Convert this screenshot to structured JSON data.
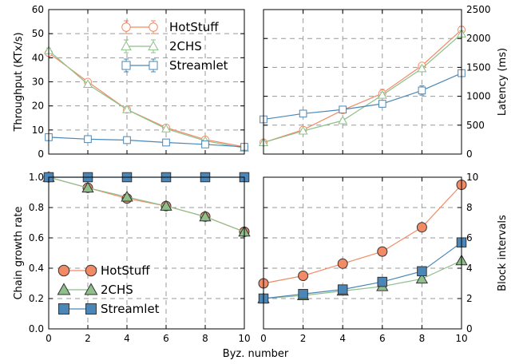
{
  "chart_data": [
    {
      "panel": "throughput",
      "type": "line",
      "xlabel": "",
      "ylabel": "Throughput (KTx/s)",
      "y_axis_side": "left",
      "xlim": [
        0,
        10
      ],
      "ylim": [
        0,
        60
      ],
      "x_ticks": [
        0,
        2,
        4,
        6,
        8,
        10
      ],
      "y_ticks": [
        0,
        10,
        20,
        30,
        40,
        50,
        60
      ],
      "show_x_tick_labels": false,
      "grid": true,
      "error_bars": true,
      "legend": "top-center",
      "x": [
        0,
        2,
        4,
        6,
        8,
        10
      ],
      "series": [
        {
          "name": "HotStuff",
          "color": "#f28a65",
          "marker": "circle",
          "filled": false,
          "values": [
            42,
            30,
            18.5,
            11,
            6,
            3
          ],
          "errors": [
            1,
            0.8,
            0.6,
            0.5,
            0.4,
            0.3
          ]
        },
        {
          "name": "2CHS",
          "color": "#8fbf8a",
          "marker": "triangle",
          "filled": false,
          "values": [
            43,
            29,
            18.5,
            10.5,
            5.5,
            2.5
          ],
          "errors": [
            1,
            0.8,
            0.6,
            0.5,
            0.4,
            0.3
          ]
        },
        {
          "name": "Streamlet",
          "color": "#4a87b8",
          "marker": "square",
          "filled": false,
          "values": [
            7,
            6.2,
            5.8,
            4.8,
            4,
            3
          ],
          "errors": [
            0.4,
            0.4,
            0.3,
            0.3,
            0.3,
            0.2
          ]
        }
      ]
    },
    {
      "panel": "latency",
      "type": "line",
      "xlabel": "",
      "ylabel": "Latency (ms)",
      "y_axis_side": "right",
      "xlim": [
        0,
        10
      ],
      "ylim": [
        0,
        2500
      ],
      "x_ticks": [
        0,
        2,
        4,
        6,
        8,
        10
      ],
      "y_ticks": [
        0,
        500,
        1000,
        1500,
        2000,
        2500
      ],
      "show_x_tick_labels": false,
      "grid": true,
      "error_bars": true,
      "legend": "none",
      "x": [
        0,
        2,
        4,
        6,
        8,
        10
      ],
      "series": [
        {
          "name": "HotStuff",
          "color": "#f28a65",
          "marker": "circle",
          "filled": false,
          "values": [
            200,
            420,
            760,
            1050,
            1530,
            2150
          ],
          "errors": [
            20,
            25,
            40,
            70,
            40,
            60
          ]
        },
        {
          "name": "2CHS",
          "color": "#8fbf8a",
          "marker": "triangle",
          "filled": false,
          "values": [
            200,
            400,
            580,
            1020,
            1480,
            2080
          ],
          "errors": [
            20,
            25,
            30,
            50,
            40,
            50
          ]
        },
        {
          "name": "Streamlet",
          "color": "#4a87b8",
          "marker": "square",
          "filled": false,
          "values": [
            600,
            700,
            770,
            870,
            1100,
            1400
          ],
          "errors": [
            20,
            30,
            40,
            50,
            80,
            40
          ]
        }
      ]
    },
    {
      "panel": "chain-growth",
      "type": "line",
      "xlabel": "Byz. number",
      "ylabel": "Chain growth rate",
      "y_axis_side": "left",
      "xlim": [
        0,
        10
      ],
      "ylim": [
        0,
        1
      ],
      "x_ticks": [
        0,
        2,
        4,
        6,
        8,
        10
      ],
      "y_ticks": [
        0.0,
        0.2,
        0.4,
        0.6,
        0.8,
        1.0
      ],
      "y_tick_labels": [
        "0.0",
        "0.2",
        "0.4",
        "0.6",
        "0.8",
        "1.0"
      ],
      "show_x_tick_labels": true,
      "grid": true,
      "error_bars": false,
      "legend": "bottom-left",
      "x": [
        0,
        2,
        4,
        6,
        8,
        10
      ],
      "series": [
        {
          "name": "HotStuff",
          "color": "#f28a65",
          "marker": "circle",
          "filled": true,
          "values": [
            1.0,
            0.93,
            0.86,
            0.81,
            0.74,
            0.64
          ]
        },
        {
          "name": "2CHS",
          "color": "#8fbf8a",
          "marker": "triangle",
          "filled": true,
          "values": [
            1.0,
            0.93,
            0.87,
            0.81,
            0.74,
            0.64
          ]
        },
        {
          "name": "Streamlet",
          "color": "#4a87b8",
          "marker": "square",
          "filled": true,
          "values": [
            1.0,
            1.0,
            1.0,
            1.0,
            1.0,
            1.0
          ]
        }
      ]
    },
    {
      "panel": "block-intervals",
      "type": "line",
      "xlabel": "",
      "ylabel": "Block intervals",
      "y_axis_side": "right",
      "xlim": [
        0,
        10
      ],
      "ylim": [
        0,
        10
      ],
      "x_ticks": [
        0,
        2,
        4,
        6,
        8,
        10
      ],
      "y_ticks": [
        0,
        2,
        4,
        6,
        8,
        10
      ],
      "show_x_tick_labels": true,
      "grid": true,
      "error_bars": false,
      "legend": "none",
      "x": [
        0,
        2,
        4,
        6,
        8,
        10
      ],
      "series": [
        {
          "name": "HotStuff",
          "color": "#f28a65",
          "marker": "circle",
          "filled": true,
          "values": [
            3.0,
            3.5,
            4.3,
            5.1,
            6.7,
            9.5
          ]
        },
        {
          "name": "2CHS",
          "color": "#8fbf8a",
          "marker": "triangle",
          "filled": true,
          "values": [
            2.0,
            2.2,
            2.5,
            2.8,
            3.3,
            4.5
          ]
        },
        {
          "name": "Streamlet",
          "color": "#4a87b8",
          "marker": "square",
          "filled": true,
          "values": [
            2.0,
            2.3,
            2.6,
            3.1,
            3.8,
            5.7
          ]
        }
      ]
    }
  ]
}
